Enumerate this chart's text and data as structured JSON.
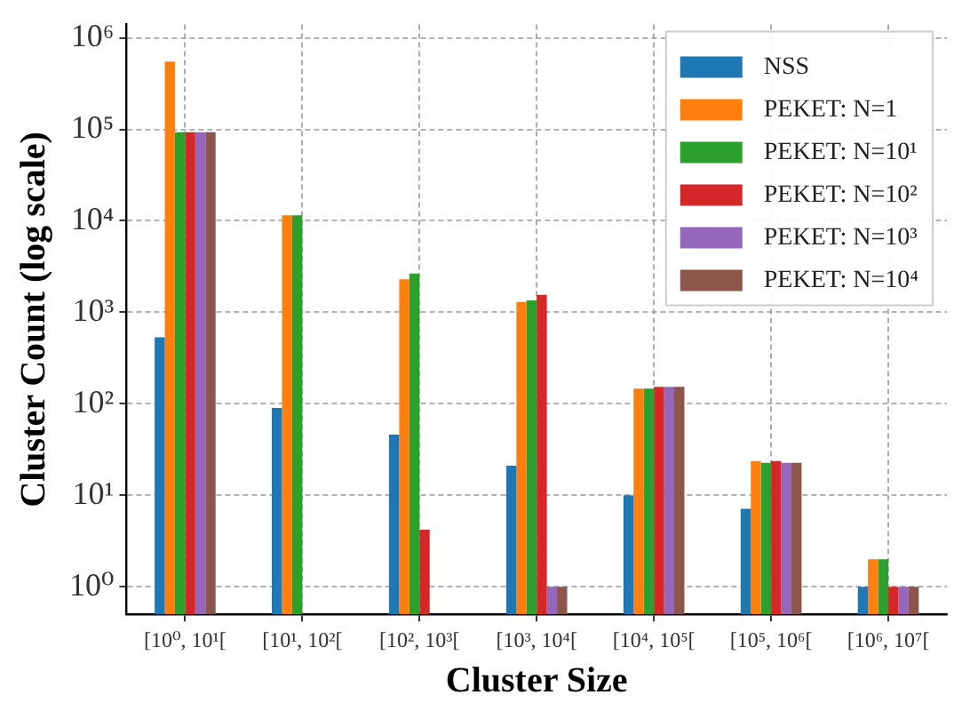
{
  "chart_data": {
    "type": "bar",
    "xlabel": "Cluster Size",
    "ylabel": "Cluster Count (log scale)",
    "categories": [
      "[10⁰, 10¹[",
      "[10¹, 10²[",
      "[10², 10³[",
      "[10³, 10⁴[",
      "[10⁴, 10⁵[",
      "[10⁵, 10⁶[",
      "[10⁶, 10⁷["
    ],
    "series": [
      {
        "name": "NSS",
        "color": "#1f77b4",
        "values": [
          535,
          90,
          46,
          21,
          10,
          7.1,
          1
        ]
      },
      {
        "name": "PEKET: N=1",
        "color": "#ff7f0e",
        "values": [
          550000,
          11500,
          2300,
          1300,
          147,
          23.7,
          2
        ]
      },
      {
        "name": "PEKET: N=10¹",
        "color": "#2ca02c",
        "values": [
          93000,
          11500,
          2650,
          1350,
          147,
          22.6,
          2
        ]
      },
      {
        "name": "PEKET: N=10²",
        "color": "#d62728",
        "values": [
          93000,
          null,
          4.2,
          1550,
          153,
          23.7,
          1
        ]
      },
      {
        "name": "PEKET: N=10³",
        "color": "#9467bd",
        "values": [
          93000,
          null,
          null,
          1,
          153,
          22.6,
          1
        ]
      },
      {
        "name": "PEKET: N=10⁴",
        "color": "#8c564b",
        "values": [
          93000,
          null,
          null,
          1,
          153,
          22.6,
          1
        ]
      }
    ],
    "log": "y",
    "ylim": [
      0.5,
      1400000
    ],
    "yticks": [
      {
        "value": 1,
        "label": "10⁰"
      },
      {
        "value": 10,
        "label": "10¹"
      },
      {
        "value": 100,
        "label": "10²"
      },
      {
        "value": 1000,
        "label": "10³"
      },
      {
        "value": 10000,
        "label": "10⁴"
      },
      {
        "value": 100000,
        "label": "10⁵"
      },
      {
        "value": 1000000,
        "label": "10⁶"
      }
    ],
    "grid": true,
    "legend": "top right"
  }
}
